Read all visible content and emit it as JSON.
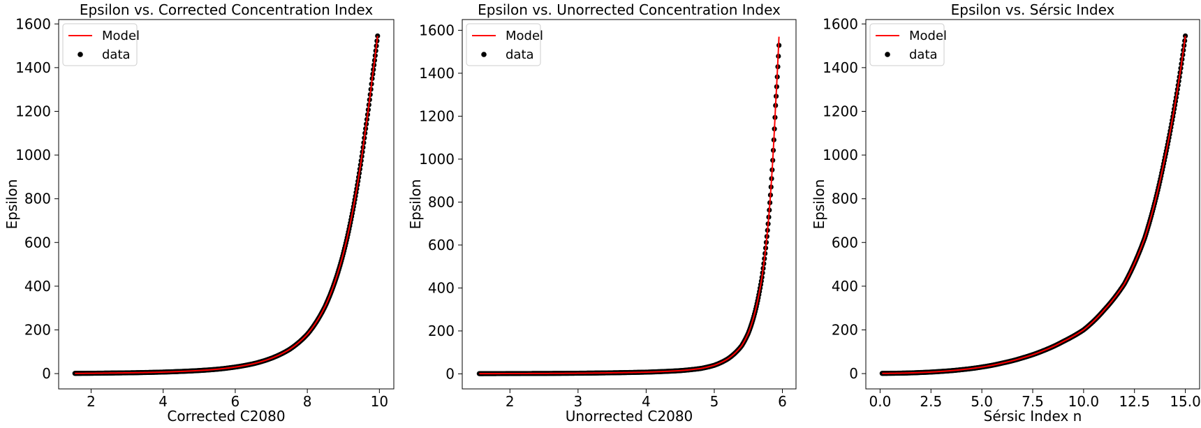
{
  "chart_data": [
    {
      "type": "scatter",
      "title": "Epsilon vs. Corrected Concentration Index",
      "xlabel": "Corrected C2080",
      "ylabel": "Epsilon",
      "xlim": [
        1.1,
        10.4
      ],
      "ylim": [
        -70,
        1620
      ],
      "xticks": [
        2,
        4,
        6,
        8,
        10
      ],
      "xtick_labels": [
        "2",
        "4",
        "6",
        "8",
        "10"
      ],
      "yticks": [
        0,
        200,
        400,
        600,
        800,
        1000,
        1200,
        1400,
        1600
      ],
      "ytick_labels": [
        "0",
        "200",
        "400",
        "600",
        "800",
        "1000",
        "1200",
        "1400",
        "1600"
      ],
      "legend": {
        "position": "upper-left",
        "entries": [
          "Model",
          "data"
        ]
      },
      "grid": false,
      "series": [
        {
          "name": "Model",
          "kind": "line",
          "color": "#ff0000",
          "x": [
            1.55,
            2.0,
            2.5,
            3.0,
            3.5,
            4.0,
            4.5,
            5.0,
            5.5,
            6.0,
            6.5,
            7.0,
            7.5,
            8.0,
            8.5,
            9.0,
            9.3,
            9.6,
            9.8,
            9.95
          ],
          "y": [
            1,
            1.5,
            2.5,
            3.5,
            5,
            7,
            10,
            14,
            20,
            30,
            45,
            70,
            110,
            180,
            310,
            550,
            780,
            1100,
            1350,
            1545
          ]
        },
        {
          "name": "data",
          "kind": "scatter",
          "color": "#000000",
          "x": [
            1.55,
            2.0,
            2.5,
            3.0,
            3.5,
            4.0,
            4.5,
            5.0,
            5.5,
            6.0,
            6.5,
            7.0,
            7.5,
            8.0,
            8.5,
            9.0,
            9.3,
            9.6,
            9.8,
            9.95
          ],
          "y": [
            1,
            1.5,
            2.5,
            3.5,
            5,
            7,
            10,
            14,
            20,
            30,
            45,
            70,
            110,
            180,
            310,
            550,
            780,
            1100,
            1350,
            1545
          ]
        }
      ]
    },
    {
      "type": "scatter",
      "title": "Epsilon vs. Unorrected Concentration Index",
      "xlabel": "Unorrected C2080",
      "ylabel": "Epsilon",
      "xlim": [
        1.3,
        6.2
      ],
      "ylim": [
        -70,
        1650
      ],
      "xticks": [
        2,
        3,
        4,
        5,
        6
      ],
      "xtick_labels": [
        "2",
        "3",
        "4",
        "5",
        "6"
      ],
      "yticks": [
        0,
        200,
        400,
        600,
        800,
        1000,
        1200,
        1400,
        1600
      ],
      "ytick_labels": [
        "0",
        "200",
        "400",
        "600",
        "800",
        "1000",
        "1200",
        "1400",
        "1600"
      ],
      "legend": {
        "position": "upper-left",
        "entries": [
          "Model",
          "data"
        ]
      },
      "grid": false,
      "series": [
        {
          "name": "Model",
          "kind": "line",
          "color": "#ff0000",
          "x": [
            1.55,
            2.0,
            2.5,
            3.0,
            3.5,
            4.0,
            4.5,
            4.8,
            5.0,
            5.2,
            5.4,
            5.5,
            5.6,
            5.7,
            5.8,
            5.85,
            5.9,
            5.95
          ],
          "y": [
            1,
            1.5,
            2,
            3,
            5,
            8,
            15,
            25,
            40,
            70,
            130,
            190,
            290,
            450,
            730,
            950,
            1250,
            1570
          ]
        },
        {
          "name": "data",
          "kind": "scatter",
          "color": "#000000",
          "x": [
            1.55,
            2.0,
            2.5,
            3.0,
            3.5,
            4.0,
            4.5,
            4.8,
            5.0,
            5.2,
            5.4,
            5.5,
            5.6,
            5.7,
            5.8,
            5.85,
            5.9,
            5.95
          ],
          "y": [
            1,
            1.5,
            2,
            3,
            5,
            8,
            15,
            25,
            40,
            70,
            130,
            190,
            290,
            450,
            730,
            950,
            1250,
            1530
          ]
        }
      ]
    },
    {
      "type": "scatter",
      "title": "Epsilon vs. Sérsic Index",
      "xlabel": "Sérsic Index n",
      "ylabel": "Epsilon",
      "xlim": [
        -0.7,
        15.7
      ],
      "ylim": [
        -70,
        1620
      ],
      "xticks": [
        0,
        2.5,
        5,
        7.5,
        10,
        12.5,
        15
      ],
      "xtick_labels": [
        "0.0",
        "2.5",
        "5.0",
        "7.5",
        "10.0",
        "12.5",
        "15.0"
      ],
      "yticks": [
        0,
        200,
        400,
        600,
        800,
        1000,
        1200,
        1400,
        1600
      ],
      "ytick_labels": [
        "0",
        "200",
        "400",
        "600",
        "800",
        "1000",
        "1200",
        "1400",
        "1600"
      ],
      "legend": {
        "position": "upper-left",
        "entries": [
          "Model",
          "data"
        ]
      },
      "grid": false,
      "series": [
        {
          "name": "Model",
          "kind": "line",
          "color": "#ff0000",
          "x": [
            0.1,
            1,
            2,
            3,
            4,
            5,
            6,
            7,
            8,
            9,
            10,
            11,
            12,
            13,
            14,
            15
          ],
          "y": [
            1,
            2,
            5,
            10,
            18,
            30,
            48,
            72,
            104,
            147,
            200,
            290,
            410,
            620,
            990,
            1545
          ]
        },
        {
          "name": "data",
          "kind": "scatter",
          "color": "#000000",
          "x": [
            0.1,
            1,
            2,
            3,
            4,
            5,
            6,
            7,
            8,
            9,
            10,
            11,
            12,
            13,
            14,
            15
          ],
          "y": [
            1,
            2,
            5,
            10,
            18,
            30,
            48,
            72,
            104,
            147,
            200,
            290,
            410,
            620,
            990,
            1545
          ]
        }
      ]
    }
  ]
}
